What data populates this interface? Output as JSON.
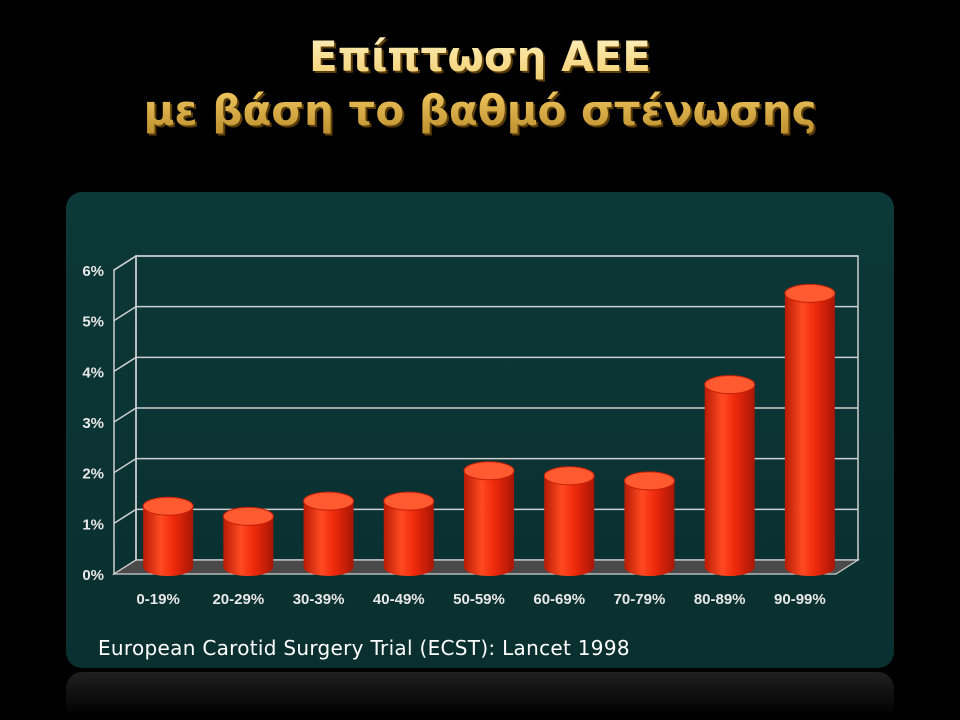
{
  "slide": {
    "title_line1": "Επίπτωση ΑΕΕ",
    "title_line2": "με βάση το βαθμό στένωσης",
    "source": "European Carotid Surgery Trial (ECST): Lancet 1998"
  },
  "colors": {
    "background": "#000000",
    "panel": "#0b3333",
    "bar": "#f02a0c",
    "title_gold": "#f0c860",
    "grid": "#cfcfcf"
  },
  "chart_data": {
    "type": "bar",
    "categories": [
      "0-19%",
      "20-29%",
      "30-39%",
      "40-49%",
      "50-59%",
      "60-69%",
      "70-79%",
      "80-89%",
      "90-99%"
    ],
    "values": [
      1.2,
      1.0,
      1.3,
      1.3,
      1.9,
      1.8,
      1.7,
      3.6,
      5.4
    ],
    "unit": "%",
    "ylim": [
      0,
      6
    ],
    "yticks": [
      "0%",
      "1%",
      "2%",
      "3%",
      "4%",
      "5%",
      "6%"
    ],
    "grid": true,
    "style": "3d-cylinder"
  }
}
